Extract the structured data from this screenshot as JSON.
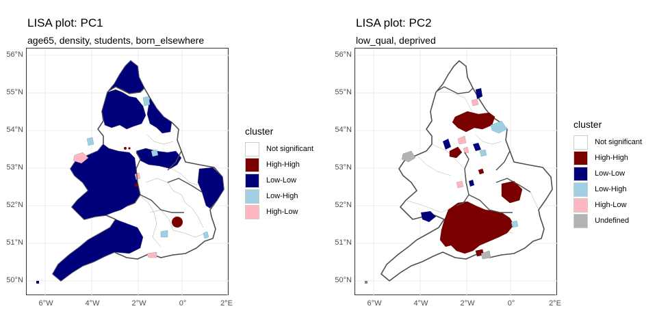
{
  "colors": {
    "Not significant": "#ffffff",
    "High-High": "#7a0000",
    "Low-Low": "#00007a",
    "Low-High": "#9ecfe2",
    "High-Low": "#ffb6c1",
    "Undefined": "#b3b3b3"
  },
  "maps": [
    {
      "title": "LISA plot: PC1",
      "subtitle": "age65, density, students, born_elsewhere",
      "y_ticks": [
        "56°N",
        "55°N",
        "54°N",
        "53°N",
        "52°N",
        "51°N",
        "50°N"
      ],
      "x_ticks": [
        "6°W",
        "4°W",
        "2°W",
        "0°",
        "2°E"
      ],
      "legend": {
        "title": "cluster",
        "entries": [
          "Not significant",
          "High-High",
          "Low-Low",
          "Low-High",
          "High-Low"
        ]
      }
    },
    {
      "title": "LISA plot: PC2",
      "subtitle": "low_qual, deprived",
      "y_ticks": [
        "56°N",
        "55°N",
        "54°N",
        "53°N",
        "52°N",
        "51°N",
        "50°N"
      ],
      "x_ticks": [
        "6°W",
        "4°W",
        "2°W",
        "0°",
        "2°E"
      ],
      "legend": {
        "title": "cluster",
        "entries": [
          "Not significant",
          "High-High",
          "Low-Low",
          "Low-High",
          "High-Low",
          "Undefined"
        ]
      }
    }
  ]
}
